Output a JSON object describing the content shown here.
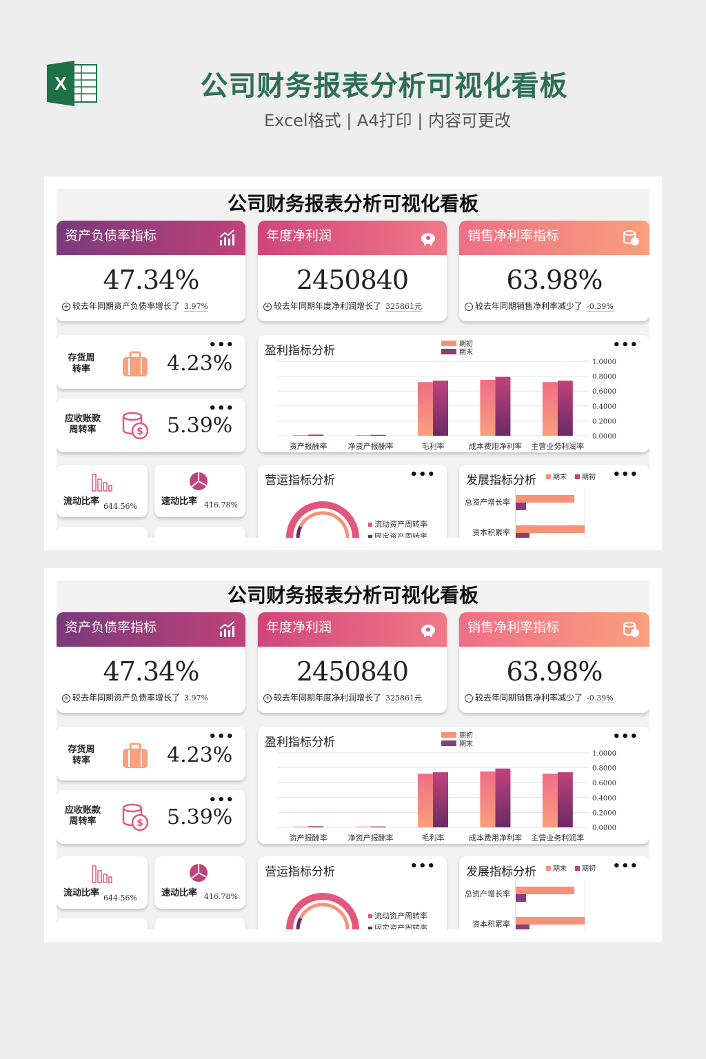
{
  "header": {
    "title": "公司财务报表分析可视化看板",
    "subtitle": "Excel格式 | A4打印 | 内容可更改",
    "logo_letter": "X"
  },
  "dashboard": {
    "title": "公司财务报表分析可视化看板",
    "kpis": [
      {
        "label": "资产负债率指标",
        "value": "47.34%",
        "note": "较去年同期资产负债率增长了",
        "compare": "3.97%",
        "sign": "+",
        "icon": "bar-chart-icon"
      },
      {
        "label": "年度净利润",
        "value": "2450840",
        "note": "较去年同期年度净利润增长了",
        "compare": "325861元",
        "sign": "+",
        "icon": "piggy-bank-icon"
      },
      {
        "label": "销售净利率指标",
        "value": "63.98%",
        "note": "较去年同期销售净利率减少了",
        "compare": "-0.39%",
        "sign": "-",
        "icon": "coins-icon"
      }
    ],
    "turnover": [
      {
        "label": "存货周转率",
        "value": "4.23%",
        "icon": "briefcase-icon"
      },
      {
        "label": "应收账款周转率",
        "value": "5.39%",
        "icon": "money-coins-icon"
      }
    ],
    "ratios": [
      {
        "label": "流动比率",
        "value": "644.56%",
        "icon": "mini-bars-icon"
      },
      {
        "label": "速动比率",
        "value": "416.78%",
        "icon": "pie-icon"
      }
    ],
    "more": "•••",
    "profit_title": "盈利指标分析",
    "operation_title": "营运指标分析",
    "operation_legend": [
      "流动资产周转率",
      "固定资产周转率"
    ],
    "growth_title": "发展指标分析",
    "growth_legend": [
      "期末",
      "期初"
    ]
  },
  "colors": {
    "purple": "#8a3b7a",
    "pink": "#e2577c",
    "peach": "#f79178",
    "green": "#2e6e55"
  },
  "chart_data": [
    {
      "type": "bar",
      "title": "盈利指标分析",
      "categories": [
        "资产报酬率",
        "净资产报酬率",
        "毛利率",
        "成本费用净利率",
        "主营业务利润率"
      ],
      "series": [
        {
          "name": "期初",
          "values": [
            0.01,
            0.01,
            0.72,
            0.75,
            0.72
          ]
        },
        {
          "name": "期末",
          "values": [
            0.015,
            0.012,
            0.74,
            0.79,
            0.74
          ]
        }
      ],
      "ylim": [
        0,
        1.0
      ],
      "yticks": [
        "1.0000",
        "0.8000",
        "0.6000",
        "0.4000",
        "0.2000",
        "0.0000"
      ],
      "legend": "top"
    },
    {
      "type": "bar",
      "title": "发展指标分析",
      "orientation": "horizontal",
      "categories": [
        "总资产增长率",
        "资本积累率"
      ],
      "series": [
        {
          "name": "期末",
          "values": [
            0.85,
            1.0
          ]
        },
        {
          "name": "期初",
          "values": [
            0.15,
            0.2
          ]
        }
      ],
      "legend": "top"
    }
  ]
}
